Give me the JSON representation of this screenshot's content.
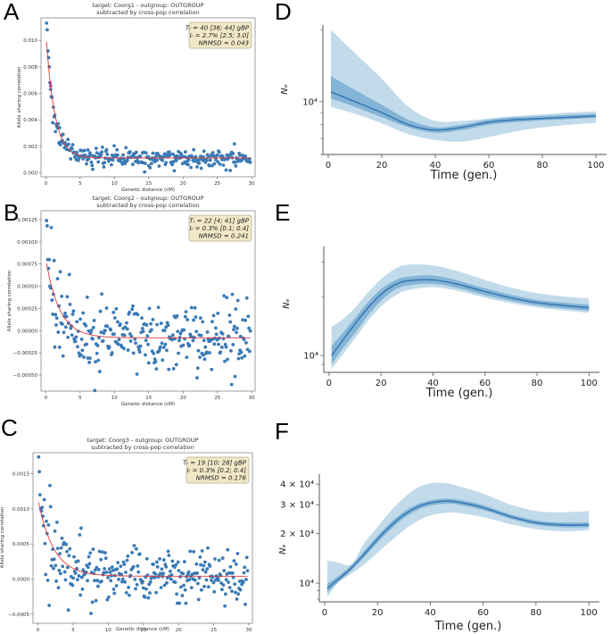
{
  "panels": {
    "A": {
      "letter": "A"
    },
    "B": {
      "letter": "B"
    },
    "C": {
      "letter": "C"
    },
    "D": {
      "letter": "D"
    },
    "E": {
      "letter": "E"
    },
    "F": {
      "letter": "F"
    }
  },
  "colors": {
    "scatter": "#3a7ab5",
    "fit_line": "#e0383a",
    "legend_bg": "#f2e8c8",
    "legend_border": "#b7ab88",
    "band_outer": "#b7d5e6",
    "band_inner": "#6fa7cf",
    "median_line": "#3a7ab5",
    "axis": "#555555"
  },
  "chart_data": [
    {
      "id": "A",
      "type": "scatter",
      "title": "target: Coorg1 - outgroup: OUTGROUP",
      "subtitle": "subtracted by cross-pop correlation",
      "xlabel": "Genetic distance (cM)",
      "ylabel": "Allele sharing correlation",
      "xlim": [
        -0.7,
        30.5
      ],
      "ylim": [
        -0.0003,
        0.0117
      ],
      "xticks": [
        0,
        5,
        10,
        15,
        20,
        25,
        30
      ],
      "xtick_labels": [
        "0",
        "5",
        "10",
        "15",
        "20",
        "25",
        "30"
      ],
      "yticks": [
        0.0,
        0.002,
        0.004,
        0.006,
        0.008,
        0.01
      ],
      "ytick_labels": [
        "0.000",
        "0.002",
        "0.004",
        "0.006",
        "0.008",
        "0.010"
      ],
      "fit": {
        "amplitude": 0.0095,
        "decay_cM": 1.25,
        "offset": 0.00112
      },
      "scatter_noise": 0.00033,
      "first_points": [
        [
          0.1,
          0.0113
        ],
        [
          0.2,
          0.0108
        ],
        [
          0.3,
          0.0092
        ],
        [
          0.4,
          0.0087
        ],
        [
          0.5,
          0.008
        ],
        [
          0.6,
          0.0068
        ],
        [
          0.7,
          0.0063
        ]
      ],
      "legend": {
        "line1": "Tᵣ = 40 [36; 44] gBP",
        "line2": "Iᵣ = 2.7% [2.5; 3.0]",
        "line3": "NRMSD = 0.043",
        "position": "top-right"
      }
    },
    {
      "id": "B",
      "type": "scatter",
      "title": "target: Coorg2 - outgroup: OUTGROUP",
      "subtitle": "subtracted by cross-pop correlation",
      "xlabel": "Genetic distance (cM)",
      "ylabel": "Allele sharing correlation",
      "xlim": [
        -0.7,
        30.5
      ],
      "ylim": [
        -0.00068,
        0.00135
      ],
      "xticks": [
        0,
        5,
        10,
        15,
        20,
        25,
        30
      ],
      "xtick_labels": [
        "0",
        "5",
        "10",
        "15",
        "20",
        "25",
        "30"
      ],
      "yticks": [
        -0.0005,
        -0.00025,
        0.0,
        0.00025,
        0.0005,
        0.00075,
        0.001,
        0.00125
      ],
      "ytick_labels": [
        "−0.00050",
        "−0.00025",
        "0.00000",
        "0.00025",
        "0.00050",
        "0.00075",
        "0.00100",
        "0.00125"
      ],
      "fit": {
        "amplitude": 0.00088,
        "decay_cM": 2.0,
        "offset": -8e-05
      },
      "scatter_noise": 0.0002,
      "first_points": [
        [
          0.1,
          0.00124
        ],
        [
          0.2,
          0.00118
        ],
        [
          0.3,
          0.0008
        ],
        [
          0.4,
          0.0007
        ],
        [
          0.5,
          0.0008
        ],
        [
          0.6,
          0.0005
        ]
      ],
      "legend": {
        "line1": "Tᵣ = 22 [4; 41] gBP",
        "line2": "Iᵣ = 0.3% [0.1; 0.4]",
        "line3": "NRMSD = 0.241",
        "position": "top-right"
      }
    },
    {
      "id": "C",
      "type": "scatter",
      "title": "target: Coorg3 - outgroup: OUTGROUP",
      "subtitle": "subtracted by cross-pop correlation",
      "xlabel": "Genetic distance (cM)",
      "ylabel": "Allele sharing correlation",
      "xlim": [
        -0.7,
        30.5
      ],
      "ylim": [
        -0.00063,
        0.0018
      ],
      "xticks": [
        0,
        5,
        10,
        15,
        20,
        25,
        30
      ],
      "xtick_labels": [
        "0",
        "5",
        "10",
        "15",
        "20",
        "25",
        "30"
      ],
      "yticks": [
        -0.0005,
        0.0,
        0.0005,
        0.001,
        0.0015
      ],
      "ytick_labels": [
        "−0.0005",
        "0.0000",
        "0.0005",
        "0.0010",
        "0.0015"
      ],
      "fit": {
        "amplitude": 0.0011,
        "decay_cM": 2.2,
        "offset": 4e-05
      },
      "scatter_noise": 0.0002,
      "first_points": [
        [
          0.1,
          0.00174
        ],
        [
          0.2,
          0.00153
        ],
        [
          0.3,
          0.0012
        ],
        [
          0.4,
          0.001
        ],
        [
          0.5,
          0.00097
        ],
        [
          0.6,
          0.00102
        ]
      ],
      "legend": {
        "line1": "Tᵣ = 19 [10; 28] gBP",
        "line2": "Iᵣ = 0.3% [0.2; 0.4]",
        "line3": "NRMSD = 0.176",
        "position": "top-right"
      }
    },
    {
      "id": "D",
      "type": "area",
      "xlabel": "Time (gen.)",
      "ylabel": "Nₑ",
      "yscale": "log",
      "xlim": [
        -2,
        104
      ],
      "ylim": [
        6000,
        21000
      ],
      "xticks": [
        0,
        20,
        40,
        60,
        80,
        100
      ],
      "xtick_labels": [
        "0",
        "20",
        "40",
        "60",
        "80",
        "100"
      ],
      "yticks_major": [
        10000
      ],
      "ytick_labels": [
        "10⁴"
      ],
      "x": [
        1,
        10,
        20,
        30,
        40,
        50,
        60,
        70,
        80,
        90,
        100
      ],
      "median": [
        11000,
        10000,
        9000,
        8000,
        7600,
        7800,
        8200,
        8400,
        8500,
        8600,
        8700
      ],
      "inner_low": [
        10300,
        9500,
        8600,
        7800,
        7400,
        7600,
        8000,
        8200,
        8350,
        8450,
        8550
      ],
      "inner_high": [
        12800,
        11200,
        9700,
        8400,
        7800,
        8000,
        8400,
        8600,
        8700,
        8800,
        8900
      ],
      "outer_low": [
        9500,
        8900,
        8100,
        7300,
        6900,
        6800,
        7100,
        7500,
        7800,
        8000,
        8150
      ],
      "outer_high": [
        20000,
        16000,
        12500,
        9500,
        8300,
        8300,
        8500,
        8700,
        8850,
        9000,
        9100
      ]
    },
    {
      "id": "E",
      "type": "area",
      "xlabel": "Time (gen.)",
      "ylabel": "Nₑ",
      "yscale": "log",
      "xlim": [
        -2,
        104
      ],
      "ylim": [
        8200,
        36000
      ],
      "xticks": [
        0,
        20,
        40,
        60,
        80,
        100
      ],
      "xtick_labels": [
        "0",
        "20",
        "40",
        "60",
        "80",
        "100"
      ],
      "yticks_major": [
        10000
      ],
      "ytick_labels": [
        "10⁴"
      ],
      "x": [
        1,
        5,
        10,
        15,
        20,
        25,
        30,
        40,
        50,
        60,
        70,
        80,
        90,
        100
      ],
      "median": [
        10000,
        11800,
        14500,
        17500,
        20500,
        22800,
        24000,
        24300,
        23000,
        21200,
        19700,
        18600,
        18000,
        17500
      ],
      "inner_low": [
        9000,
        10700,
        13000,
        16000,
        19000,
        21500,
        22700,
        23200,
        22000,
        20300,
        19000,
        18000,
        17400,
        16900
      ],
      "inner_high": [
        11200,
        12900,
        15500,
        18700,
        21800,
        24000,
        25200,
        25600,
        24000,
        22000,
        20400,
        19200,
        18600,
        18200
      ],
      "outer_low": [
        8500,
        10000,
        12200,
        15000,
        17800,
        20000,
        21500,
        22300,
        21300,
        19700,
        18500,
        17600,
        17000,
        16500
      ],
      "outer_high": [
        14000,
        15200,
        17500,
        21000,
        24500,
        27500,
        29000,
        28800,
        26800,
        24300,
        22200,
        20800,
        20000,
        19500
      ]
    },
    {
      "id": "F",
      "type": "area",
      "xlabel": "Time (gen.)",
      "ylabel": "Nₑ",
      "yscale": "log",
      "xlim": [
        -2,
        104
      ],
      "ylim": [
        7700,
        46000
      ],
      "xticks": [
        0,
        20,
        40,
        60,
        80,
        100
      ],
      "xtick_labels": [
        "0",
        "20",
        "40",
        "60",
        "80",
        "100"
      ],
      "yticks_major": [
        10000,
        20000,
        30000,
        40000
      ],
      "ytick_labels": [
        "10⁴",
        "2 × 10⁴",
        "3 × 10⁴",
        "4 × 10⁴"
      ],
      "x": [
        1,
        5,
        10,
        15,
        20,
        25,
        30,
        35,
        40,
        45,
        50,
        60,
        70,
        80,
        90,
        100
      ],
      "median": [
        9300,
        10500,
        12300,
        15000,
        18500,
        22300,
        26000,
        29000,
        30800,
        31500,
        31200,
        28800,
        25500,
        23300,
        22600,
        22600
      ],
      "inner_low": [
        8800,
        10100,
        11900,
        14400,
        17600,
        21200,
        24800,
        27800,
        29600,
        30300,
        30100,
        27800,
        24700,
        22600,
        21900,
        21900
      ],
      "inner_high": [
        9900,
        11000,
        12800,
        15700,
        19400,
        23400,
        27200,
        30100,
        31800,
        32600,
        32300,
        29800,
        26300,
        24100,
        23400,
        23400
      ],
      "outer_low": [
        8200,
        10000,
        11400,
        13000,
        15300,
        18000,
        21000,
        23800,
        25800,
        26700,
        26800,
        25200,
        22900,
        21300,
        20700,
        21000
      ],
      "outer_high": [
        13700,
        13400,
        13000,
        17500,
        22000,
        27500,
        33000,
        38000,
        40500,
        40700,
        39200,
        35000,
        30200,
        27500,
        27000,
        27500
      ]
    }
  ]
}
